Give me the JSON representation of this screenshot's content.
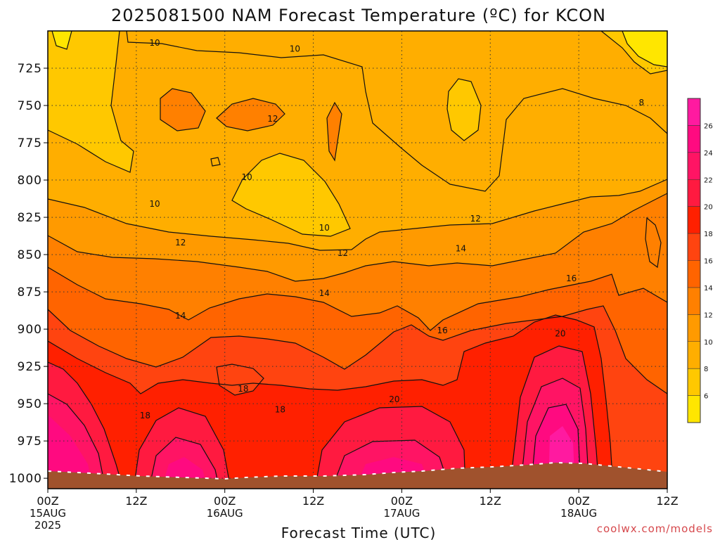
{
  "chart_data": {
    "type": "heatmap",
    "title": "2025081500 NAM Forecast Temperature (ºC) for KCON",
    "xlabel": "Forecast Time (UTC)",
    "ylabel": "",
    "credit": "coolwx.com/models",
    "x_ticks": [
      {
        "hours": 0,
        "label": "00Z",
        "sub": "15AUG",
        "sub2": "2025"
      },
      {
        "hours": 12,
        "label": "12Z",
        "sub": "",
        "sub2": ""
      },
      {
        "hours": 24,
        "label": "00Z",
        "sub": "16AUG",
        "sub2": ""
      },
      {
        "hours": 36,
        "label": "12Z",
        "sub": "",
        "sub2": ""
      },
      {
        "hours": 48,
        "label": "00Z",
        "sub": "17AUG",
        "sub2": ""
      },
      {
        "hours": 60,
        "label": "12Z",
        "sub": "",
        "sub2": ""
      },
      {
        "hours": 72,
        "label": "00Z",
        "sub": "18AUG",
        "sub2": ""
      },
      {
        "hours": 84,
        "label": "12Z",
        "sub": "",
        "sub2": ""
      }
    ],
    "xlim": [
      0,
      84
    ],
    "ylim": [
      1007,
      700
    ],
    "y_ticks": [
      725,
      750,
      775,
      800,
      825,
      850,
      875,
      900,
      925,
      950,
      975,
      1000
    ],
    "grid": true,
    "colorbar": {
      "ticks": [
        6,
        8,
        10,
        12,
        14,
        16,
        18,
        20,
        22,
        24,
        26
      ],
      "bins": [
        {
          "min": 4,
          "max": 6,
          "color": "#ffe600"
        },
        {
          "min": 6,
          "max": 8,
          "color": "#ffc800"
        },
        {
          "min": 8,
          "max": 10,
          "color": "#ffae00"
        },
        {
          "min": 10,
          "max": 12,
          "color": "#ff9a00"
        },
        {
          "min": 12,
          "max": 14,
          "color": "#ff8000"
        },
        {
          "min": 14,
          "max": 16,
          "color": "#ff6400"
        },
        {
          "min": 16,
          "max": 18,
          "color": "#ff4410"
        },
        {
          "min": 18,
          "max": 20,
          "color": "#ff2000"
        },
        {
          "min": 20,
          "max": 22,
          "color": "#ff1a40"
        },
        {
          "min": 22,
          "max": 24,
          "color": "#ff1464"
        },
        {
          "min": 24,
          "max": 26,
          "color": "#ff0a80"
        },
        {
          "min": 26,
          "max": 28,
          "color": "#ff1aa0"
        }
      ]
    },
    "contour_labels": [
      {
        "value": 10,
        "hours": 14.5,
        "pressure": 708
      },
      {
        "value": 10,
        "hours": 33.5,
        "pressure": 712
      },
      {
        "value": 10,
        "hours": 27,
        "pressure": 798
      },
      {
        "value": 10,
        "hours": 14.5,
        "pressure": 816
      },
      {
        "value": 10,
        "hours": 37.5,
        "pressure": 832
      },
      {
        "value": 12,
        "hours": 30.5,
        "pressure": 759
      },
      {
        "value": 12,
        "hours": 58,
        "pressure": 826
      },
      {
        "value": 12,
        "hours": 18,
        "pressure": 842
      },
      {
        "value": 12,
        "hours": 40,
        "pressure": 849
      },
      {
        "value": 8,
        "hours": 80.5,
        "pressure": 748
      },
      {
        "value": 14,
        "hours": 56,
        "pressure": 846
      },
      {
        "value": 14,
        "hours": 37.5,
        "pressure": 876
      },
      {
        "value": 14,
        "hours": 18,
        "pressure": 891
      },
      {
        "value": 16,
        "hours": 71,
        "pressure": 866
      },
      {
        "value": 16,
        "hours": 53.5,
        "pressure": 901
      },
      {
        "value": 18,
        "hours": 26.5,
        "pressure": 940
      },
      {
        "value": 18,
        "hours": 31.5,
        "pressure": 954
      },
      {
        "value": 18,
        "hours": 13.2,
        "pressure": 958
      },
      {
        "value": 20,
        "hours": 47,
        "pressure": 947
      },
      {
        "value": 20,
        "hours": 69.5,
        "pressure": 903
      }
    ]
  }
}
